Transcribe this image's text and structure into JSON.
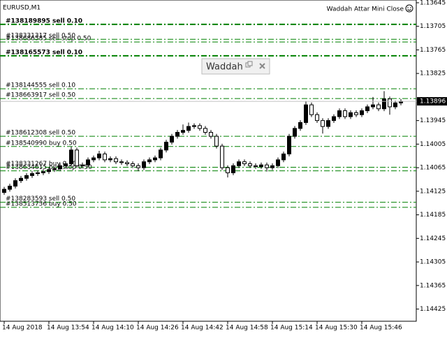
{
  "chart_data": {
    "type": "candlestick",
    "symbol": "EURUSD,M1",
    "indicator": "Waddah Attar Mini Close",
    "dialog_title": "Waddah A",
    "ylim": [
      1.13638,
      1.14456
    ],
    "yticks": [
      1.14425,
      1.14365,
      1.14305,
      1.14245,
      1.14185,
      1.14125,
      1.14065,
      1.14005,
      1.13945,
      1.13825,
      1.13765,
      1.13705,
      1.13645
    ],
    "xticks": [
      {
        "value": 0,
        "label": "14 Aug 2018"
      },
      {
        "value": 8,
        "label": "14 Aug 13:54"
      },
      {
        "value": 16,
        "label": "14 Aug 14:10"
      },
      {
        "value": 24,
        "label": "14 Aug 14:26"
      },
      {
        "value": 32,
        "label": "14 Aug 14:42"
      },
      {
        "value": 40,
        "label": "14 Aug 14:58"
      },
      {
        "value": 48,
        "label": "14 Aug 15:14"
      },
      {
        "value": 56,
        "label": "14 Aug 15:30"
      },
      {
        "value": 64,
        "label": "14 Aug 15:46"
      }
    ],
    "bid": 1.13896,
    "open": [
      1.14128,
      1.1412,
      1.14112,
      1.14098,
      1.14092,
      1.14085,
      1.1408,
      1.14078,
      1.14075,
      1.1407,
      1.14068,
      1.1406,
      1.14055,
      1.1402,
      1.1406,
      1.14058,
      1.14045,
      1.1404,
      1.1403,
      1.14045,
      1.14042,
      1.1405,
      1.14052,
      1.14055,
      1.1406,
      1.14065,
      1.1405,
      1.14045,
      1.1404,
      1.1402,
      1.14,
      1.13985,
      1.13975,
      1.1397,
      1.1396,
      1.13958,
      1.13965,
      1.13975,
      1.13985,
      1.1401,
      1.14065,
      1.14078,
      1.1406,
      1.1405,
      1.14055,
      1.1406,
      1.14062,
      1.14058,
      1.14065,
      1.1406,
      1.14045,
      1.1403,
      1.13985,
      1.13965,
      1.1395,
      1.13905,
      1.1393,
      1.13945,
      1.1396,
      1.13945,
      1.13935,
      1.1392,
      1.13935,
      1.13925,
      1.1393,
      1.1392,
      1.1391,
      1.13905,
      1.13915,
      1.1389,
      1.1391,
      1.139
    ],
    "high": [
      1.14134,
      1.14126,
      1.14118,
      1.14104,
      1.14098,
      1.14091,
      1.14086,
      1.14084,
      1.14081,
      1.14076,
      1.14074,
      1.14066,
      1.14061,
      1.14066,
      1.14066,
      1.14064,
      1.14051,
      1.14046,
      1.14051,
      1.14051,
      1.14056,
      1.14058,
      1.14061,
      1.14066,
      1.14074,
      1.14071,
      1.14056,
      1.14051,
      1.14046,
      1.14026,
      1.14006,
      1.13991,
      1.13981,
      1.13976,
      1.13966,
      1.13971,
      1.13981,
      1.13991,
      1.14016,
      1.14071,
      1.1409,
      1.14084,
      1.14066,
      1.14061,
      1.14066,
      1.14068,
      1.14068,
      1.14075,
      1.14071,
      1.14066,
      1.14051,
      1.14036,
      1.13991,
      1.13971,
      1.13956,
      1.13936,
      1.13951,
      1.13978,
      1.13966,
      1.13951,
      1.13941,
      1.13941,
      1.13941,
      1.13936,
      1.13936,
      1.13926,
      1.13916,
      1.13921,
      1.13921,
      1.1393,
      1.13916,
      1.13906
    ],
    "low": [
      1.14114,
      1.14106,
      1.14092,
      1.14086,
      1.14079,
      1.14074,
      1.14072,
      1.14069,
      1.14064,
      1.14062,
      1.14054,
      1.14049,
      1.14012,
      1.14014,
      1.14052,
      1.14039,
      1.14034,
      1.14022,
      1.14024,
      1.14036,
      1.14036,
      1.14044,
      1.14046,
      1.14049,
      1.14054,
      1.14044,
      1.14039,
      1.14034,
      1.14014,
      1.13994,
      1.13979,
      1.13969,
      1.13955,
      1.1395,
      1.13952,
      1.13952,
      1.13959,
      1.13969,
      1.13979,
      1.14004,
      1.14059,
      1.14054,
      1.14044,
      1.14044,
      1.14049,
      1.14054,
      1.14052,
      1.14052,
      1.14054,
      1.14039,
      1.14024,
      1.13979,
      1.13959,
      1.13944,
      1.13895,
      1.13899,
      1.13924,
      1.13939,
      1.13939,
      1.13929,
      1.13914,
      1.13914,
      1.13919,
      1.13919,
      1.13914,
      1.13904,
      1.13885,
      1.13899,
      1.1387,
      1.13884,
      1.13894,
      1.1389
    ],
    "close": [
      1.1412,
      1.14112,
      1.14098,
      1.14092,
      1.14085,
      1.1408,
      1.14078,
      1.14075,
      1.1407,
      1.14068,
      1.1406,
      1.14055,
      1.1402,
      1.1406,
      1.14058,
      1.14045,
      1.1404,
      1.1403,
      1.14045,
      1.14042,
      1.1405,
      1.14052,
      1.14055,
      1.1406,
      1.14065,
      1.1405,
      1.14045,
      1.1404,
      1.1402,
      1.14,
      1.13985,
      1.13975,
      1.1397,
      1.1396,
      1.13958,
      1.13965,
      1.13975,
      1.13985,
      1.1401,
      1.14065,
      1.14078,
      1.1406,
      1.1405,
      1.14055,
      1.1406,
      1.14062,
      1.14058,
      1.14065,
      1.1406,
      1.14045,
      1.1403,
      1.13985,
      1.13965,
      1.1395,
      1.13905,
      1.1393,
      1.13945,
      1.1396,
      1.13945,
      1.13935,
      1.1392,
      1.13935,
      1.13925,
      1.1393,
      1.1392,
      1.1391,
      1.13905,
      1.13915,
      1.1389,
      1.1391,
      1.139,
      1.13896
    ],
    "orders": [
      {
        "label": "#138513756 buy 0.50",
        "price": 1.14166,
        "bold": false
      },
      {
        "label": "#138283593 sell 0.50",
        "price": 1.14153,
        "bold": false
      },
      {
        "label": "#138634615 buy stop 0.50",
        "price": 1.14073,
        "bold": false
      },
      {
        "label": "#138331267 buy 0.50",
        "price": 1.14064,
        "bold": false
      },
      {
        "label": "#138540990 buy 0.50",
        "price": 1.14011,
        "bold": false
      },
      {
        "label": "#138612308 sell 0.50",
        "price": 1.13985,
        "bold": false
      },
      {
        "label": "#138663917 sell 0.50",
        "price": 1.13889,
        "bold": false
      },
      {
        "label": "#138144555 sell 0.10",
        "price": 1.13864,
        "bold": false
      },
      {
        "label": "#138165573 sell 0.10",
        "price": 1.1378,
        "bold": true
      },
      {
        "label": "#138686585 sell stop 0.50",
        "price": 1.13745,
        "bold": false
      },
      {
        "label": "#138331317 sell 0.50",
        "price": 1.13738,
        "bold": false
      },
      {
        "label": "#138189895 sell 0.10",
        "price": 1.137,
        "bold": true
      }
    ],
    "order_color": "#008000"
  }
}
